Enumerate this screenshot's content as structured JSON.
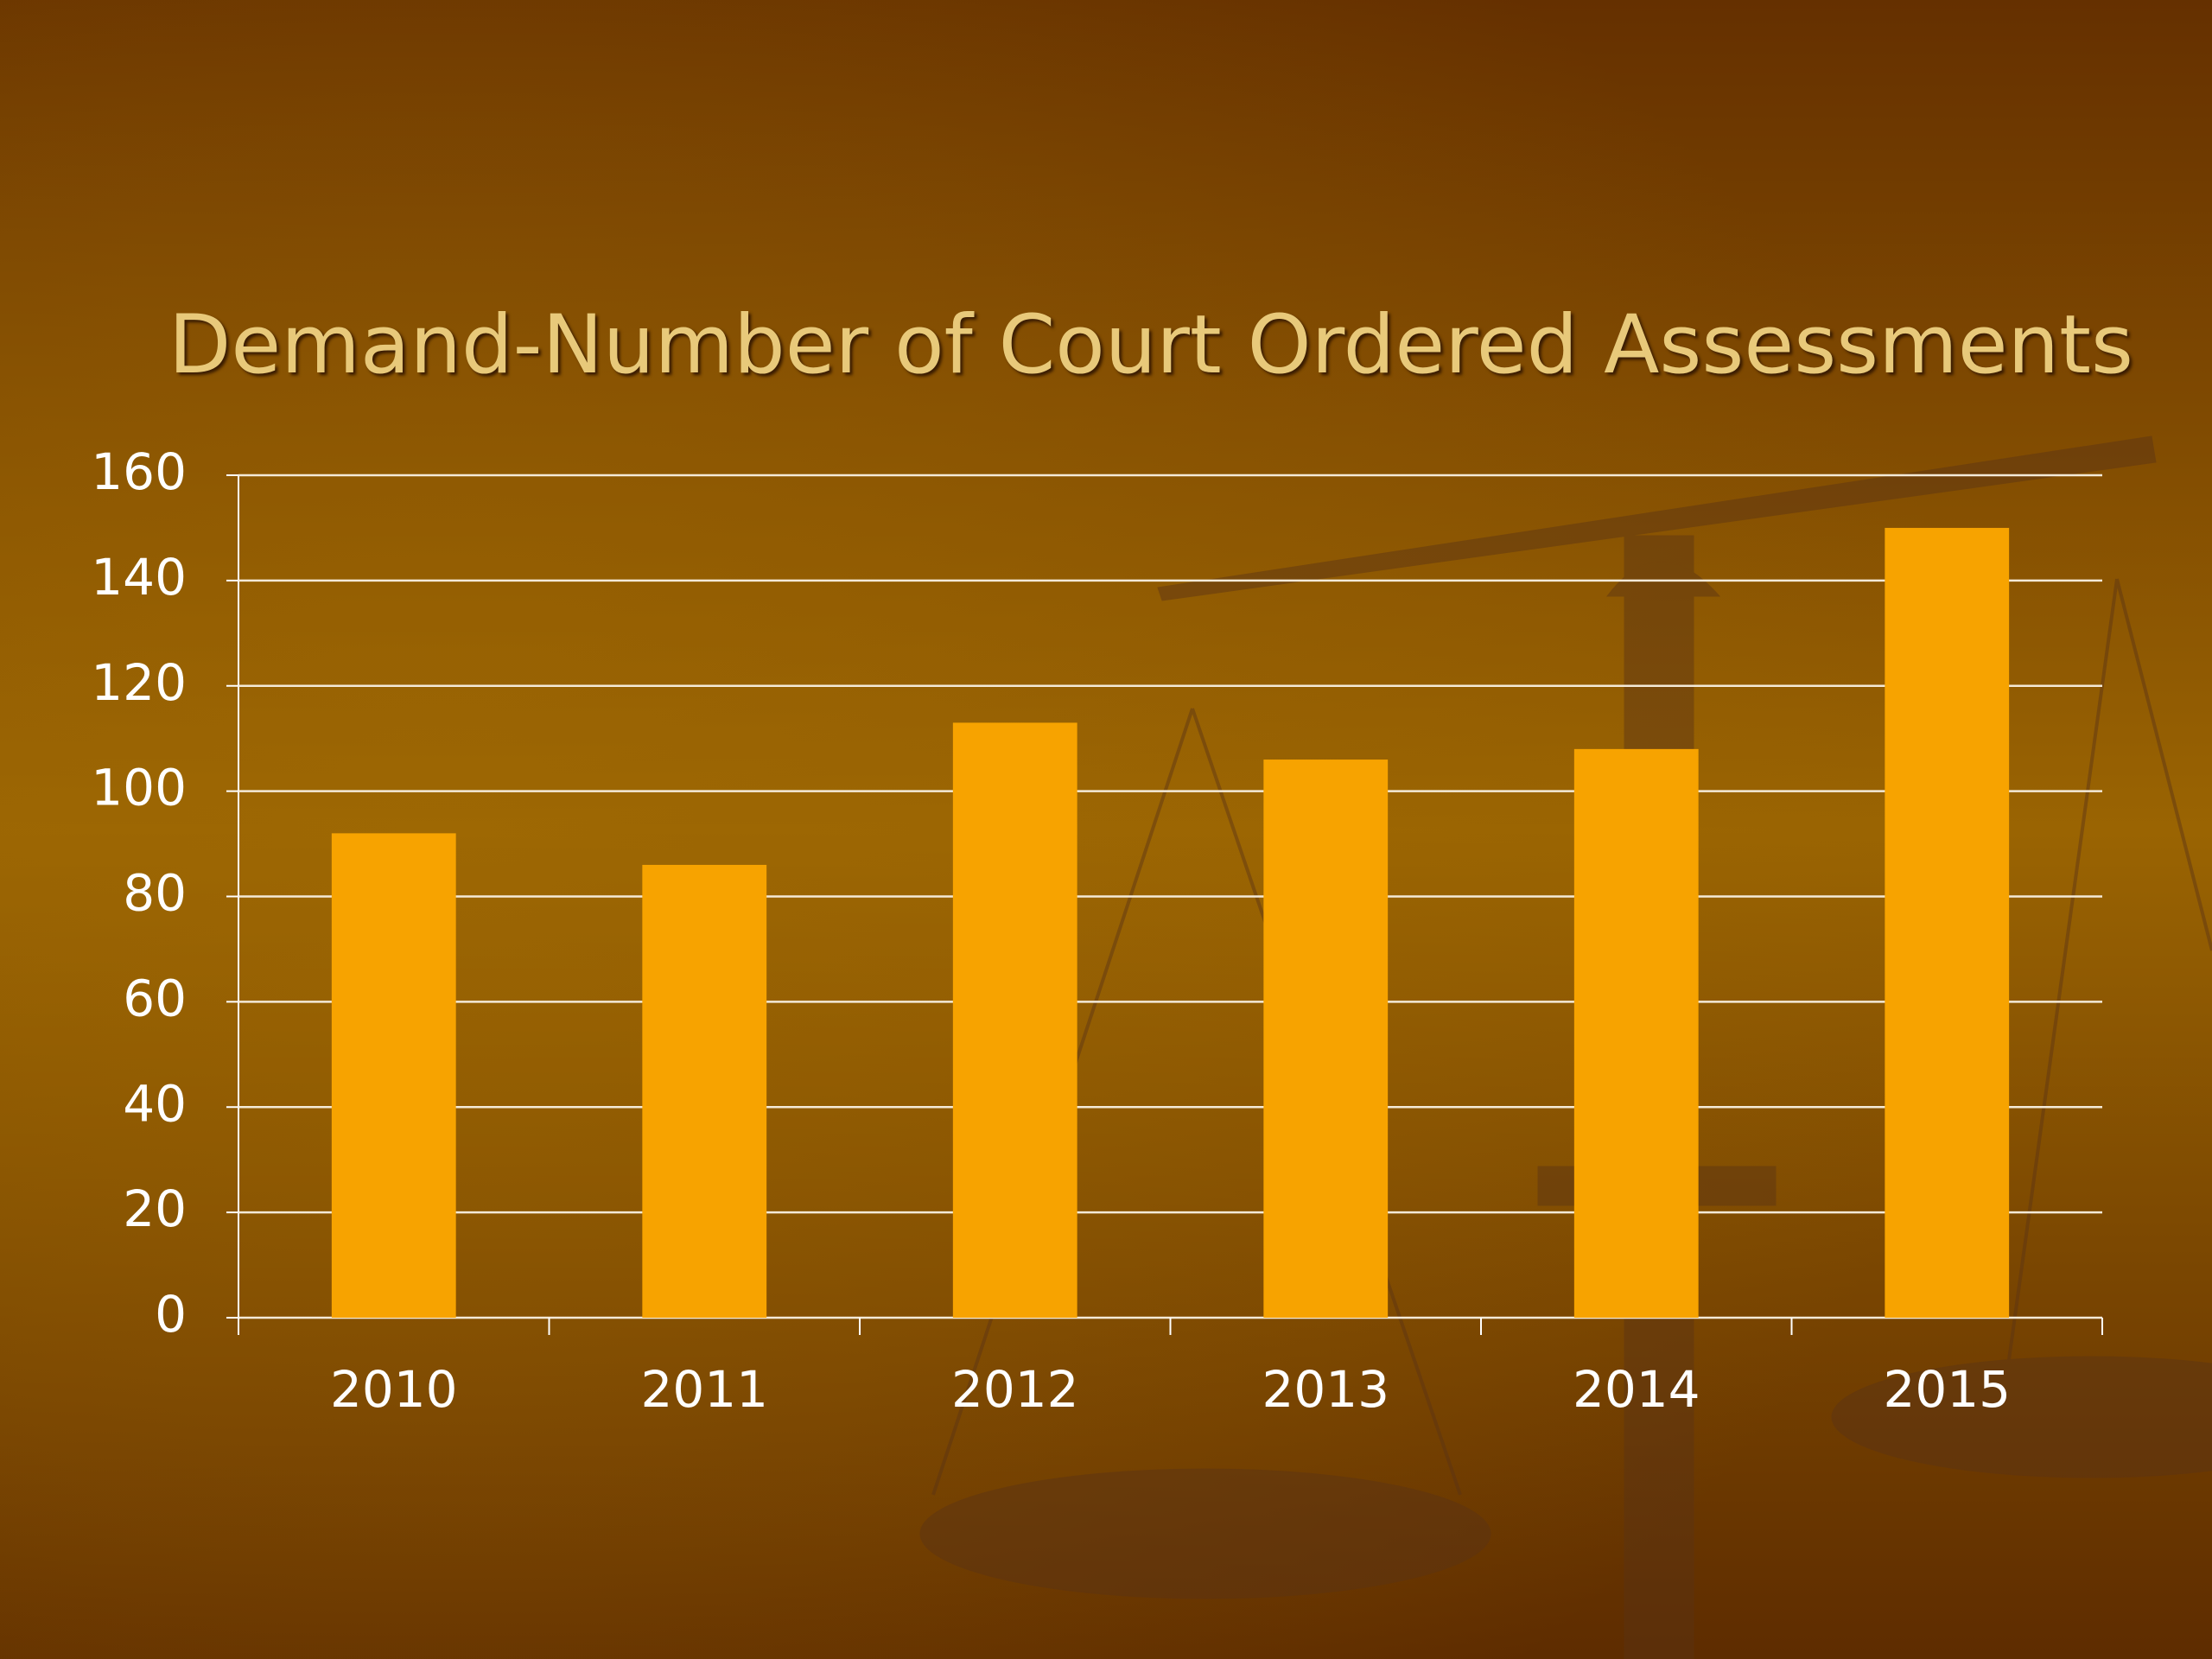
{
  "chart_data": {
    "type": "bar",
    "title": "Demand-Number of Court Ordered Assessments",
    "categories": [
      "2010",
      "2011",
      "2012",
      "2013",
      "2014",
      "2015"
    ],
    "values": [
      92,
      86,
      113,
      106,
      108,
      150
    ],
    "color": "#f7a300",
    "ylim": [
      0,
      160
    ],
    "yticks": [
      0,
      20,
      40,
      60,
      80,
      100,
      120,
      140,
      160
    ],
    "grid": true
  }
}
